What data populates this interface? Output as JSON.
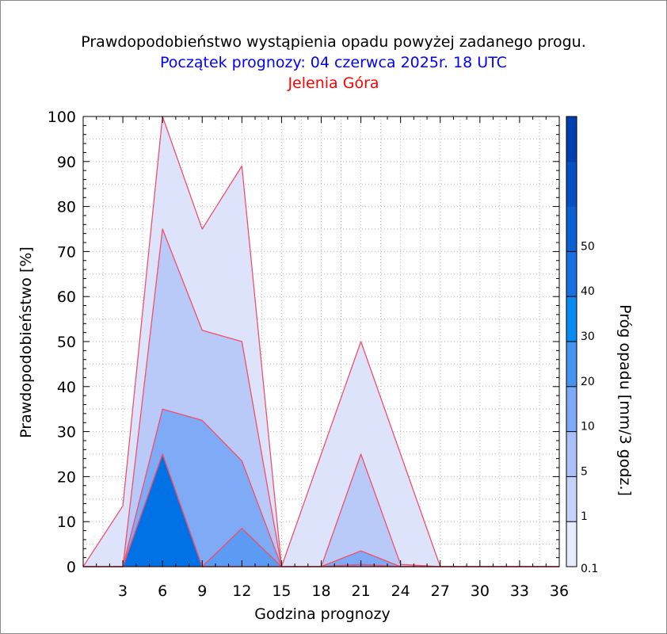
{
  "chart_data": {
    "type": "area",
    "title": "Prawdopodobieństwo wystąpienia opadu powyżej zadanego progu.",
    "subtitle": "Początek prognozy: 04 czerwca 2025r. 18 UTC",
    "location": "Jelenia Góra",
    "xlabel": "Godzina prognozy",
    "ylabel": "Prawdopodobieństwo [%]",
    "colorbar_label": "Próg opadu [mm/3 godz.]",
    "xlim": [
      0,
      36
    ],
    "ylim": [
      0,
      100
    ],
    "x_ticks": [
      3,
      6,
      9,
      12,
      15,
      18,
      21,
      24,
      27,
      30,
      33,
      36
    ],
    "y_ticks": [
      0,
      10,
      20,
      30,
      40,
      50,
      60,
      70,
      80,
      90,
      100
    ],
    "grid": true,
    "x": [
      0,
      3,
      6,
      9,
      12,
      15,
      18,
      21,
      24,
      27,
      30,
      33,
      36
    ],
    "series": [
      {
        "name": "0.1",
        "color": "#dde3fb",
        "values": [
          0,
          13.5,
          100,
          75,
          89,
          0,
          25,
          50,
          25,
          0,
          0,
          0,
          0
        ]
      },
      {
        "name": "1",
        "color": "#b9c9f8",
        "values": [
          0,
          0,
          75,
          52.5,
          50,
          0,
          0,
          25,
          0.5,
          0,
          0,
          0,
          0
        ]
      },
      {
        "name": "5",
        "color": "#7eaaf6",
        "values": [
          0,
          0,
          35,
          32.5,
          23.5,
          0,
          0,
          3.5,
          0,
          0,
          0,
          0,
          0
        ]
      },
      {
        "name": "10",
        "color": "#5b9bf4",
        "values": [
          0,
          0,
          25,
          0,
          8.5,
          0,
          0,
          0.5,
          0,
          0,
          0,
          0,
          0
        ]
      },
      {
        "name": "20",
        "color": "#0072e6",
        "values": [
          0,
          0,
          25,
          0,
          0,
          0,
          0,
          0,
          0,
          0,
          0,
          0,
          0
        ]
      },
      {
        "name": "30",
        "color": "#0059d0",
        "values": [
          0,
          0,
          0,
          0,
          0,
          0,
          0,
          0,
          0,
          0,
          0,
          0,
          0
        ]
      }
    ],
    "colorbar": {
      "labels": [
        "0.1",
        "1",
        "5",
        "10",
        "20",
        "30",
        "40",
        "50"
      ],
      "colors": [
        "#e6ebfd",
        "#c5d2fa",
        "#a9c0f8",
        "#7ea9f6",
        "#4794f0",
        "#0a8bf2",
        "#1670df",
        "#0b60d2",
        "#0650c3",
        "#003fb0"
      ]
    },
    "outline_color": "#f0506a"
  }
}
